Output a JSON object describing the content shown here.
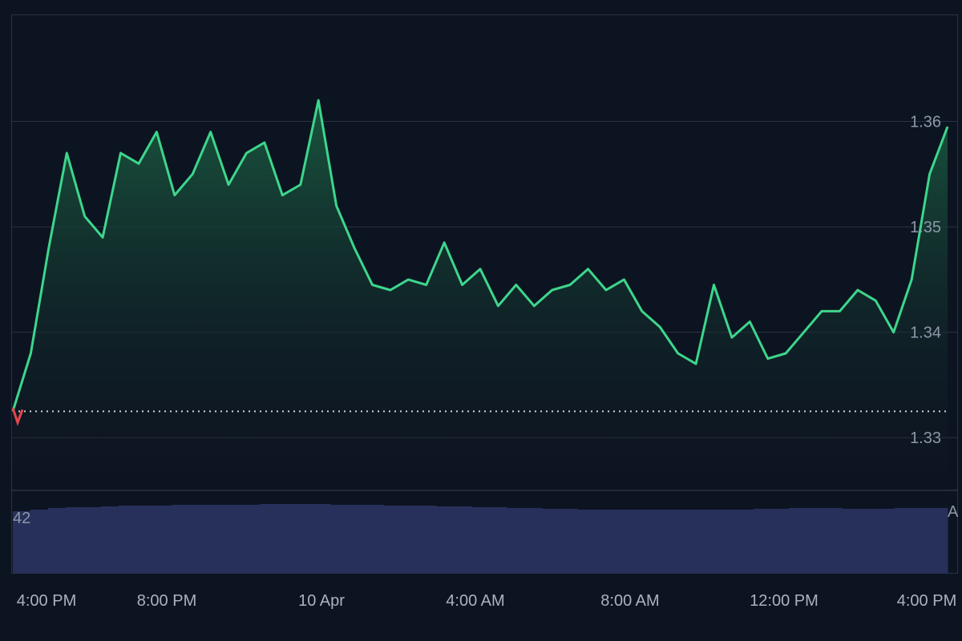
{
  "chart_data": {
    "type": "area",
    "title": "",
    "xlabel": "",
    "ylabel": "",
    "x_tick_labels": [
      "4:00 PM",
      "8:00 PM",
      "10 Apr",
      "4:00 AM",
      "8:00 AM",
      "12:00 PM",
      "4:00 PM"
    ],
    "y_tick_labels": [
      "1.36",
      "1.35",
      "1.34",
      "1.33"
    ],
    "y_ticks": [
      1.36,
      1.35,
      1.34,
      1.33
    ],
    "ylim": [
      1.325,
      1.37
    ],
    "reference_value": 1.3325,
    "volume_label": "42",
    "volume_edge_label": "A",
    "grid": true,
    "colors": {
      "background": "#0d1421",
      "line": "#3dd68c",
      "fill_top": "#1a5a40",
      "start_marker": "#e5484d",
      "grid": "#2a3242",
      "volume": "#27305a",
      "reference": "#cfd4dc"
    },
    "series": [
      {
        "x": [
          "2024-04-09 14:30",
          "2024-04-09 15:00",
          "2024-04-09 15:30",
          "2024-04-09 16:00",
          "2024-04-09 16:30",
          "2024-04-09 17:00",
          "2024-04-09 17:30",
          "2024-04-09 18:00",
          "2024-04-09 18:30",
          "2024-04-09 19:00",
          "2024-04-09 19:30",
          "2024-04-09 20:00",
          "2024-04-09 20:30",
          "2024-04-09 21:00",
          "2024-04-09 21:30",
          "2024-04-09 22:00",
          "2024-04-09 22:30",
          "2024-04-09 23:00",
          "2024-04-09 23:30",
          "2024-04-10 00:00",
          "2024-04-10 00:30",
          "2024-04-10 01:00",
          "2024-04-10 01:30",
          "2024-04-10 02:00",
          "2024-04-10 02:30",
          "2024-04-10 03:00",
          "2024-04-10 03:30",
          "2024-04-10 04:00",
          "2024-04-10 04:30",
          "2024-04-10 05:00",
          "2024-04-10 05:30",
          "2024-04-10 06:00",
          "2024-04-10 06:30",
          "2024-04-10 07:00",
          "2024-04-10 07:30",
          "2024-04-10 08:00",
          "2024-04-10 08:30",
          "2024-04-10 09:00",
          "2024-04-10 09:30",
          "2024-04-10 10:00",
          "2024-04-10 10:30",
          "2024-04-10 11:00",
          "2024-04-10 11:30",
          "2024-04-10 12:00",
          "2024-04-10 12:30",
          "2024-04-10 13:00",
          "2024-04-10 13:30",
          "2024-04-10 14:00",
          "2024-04-10 14:30",
          "2024-04-10 15:00",
          "2024-04-10 15:30",
          "2024-04-10 16:00",
          "2024-04-10 16:30"
        ],
        "values": [
          1.3325,
          1.338,
          1.348,
          1.357,
          1.351,
          1.349,
          1.357,
          1.356,
          1.359,
          1.353,
          1.355,
          1.359,
          1.354,
          1.357,
          1.358,
          1.353,
          1.354,
          1.362,
          1.352,
          1.348,
          1.3445,
          1.344,
          1.345,
          1.3445,
          1.3485,
          1.3445,
          1.346,
          1.3425,
          1.3445,
          1.3425,
          1.344,
          1.3445,
          1.346,
          1.344,
          1.345,
          1.342,
          1.3405,
          1.338,
          1.337,
          1.3445,
          1.3395,
          1.341,
          1.3375,
          1.338,
          1.34,
          1.342,
          1.342,
          1.344,
          1.343,
          1.34,
          1.345,
          1.355,
          1.3595
        ]
      }
    ],
    "volume": [
      0.78,
      0.8,
      0.82,
      0.83,
      0.83,
      0.84,
      0.85,
      0.85,
      0.85,
      0.86,
      0.86,
      0.86,
      0.86,
      0.86,
      0.87,
      0.87,
      0.87,
      0.87,
      0.86,
      0.86,
      0.86,
      0.85,
      0.85,
      0.85,
      0.84,
      0.84,
      0.83,
      0.83,
      0.82,
      0.82,
      0.81,
      0.81,
      0.8,
      0.8,
      0.8,
      0.8,
      0.8,
      0.8,
      0.8,
      0.8,
      0.8,
      0.8,
      0.81,
      0.81,
      0.82,
      0.82,
      0.82,
      0.81,
      0.81,
      0.81,
      0.82,
      0.82,
      0.82
    ]
  }
}
